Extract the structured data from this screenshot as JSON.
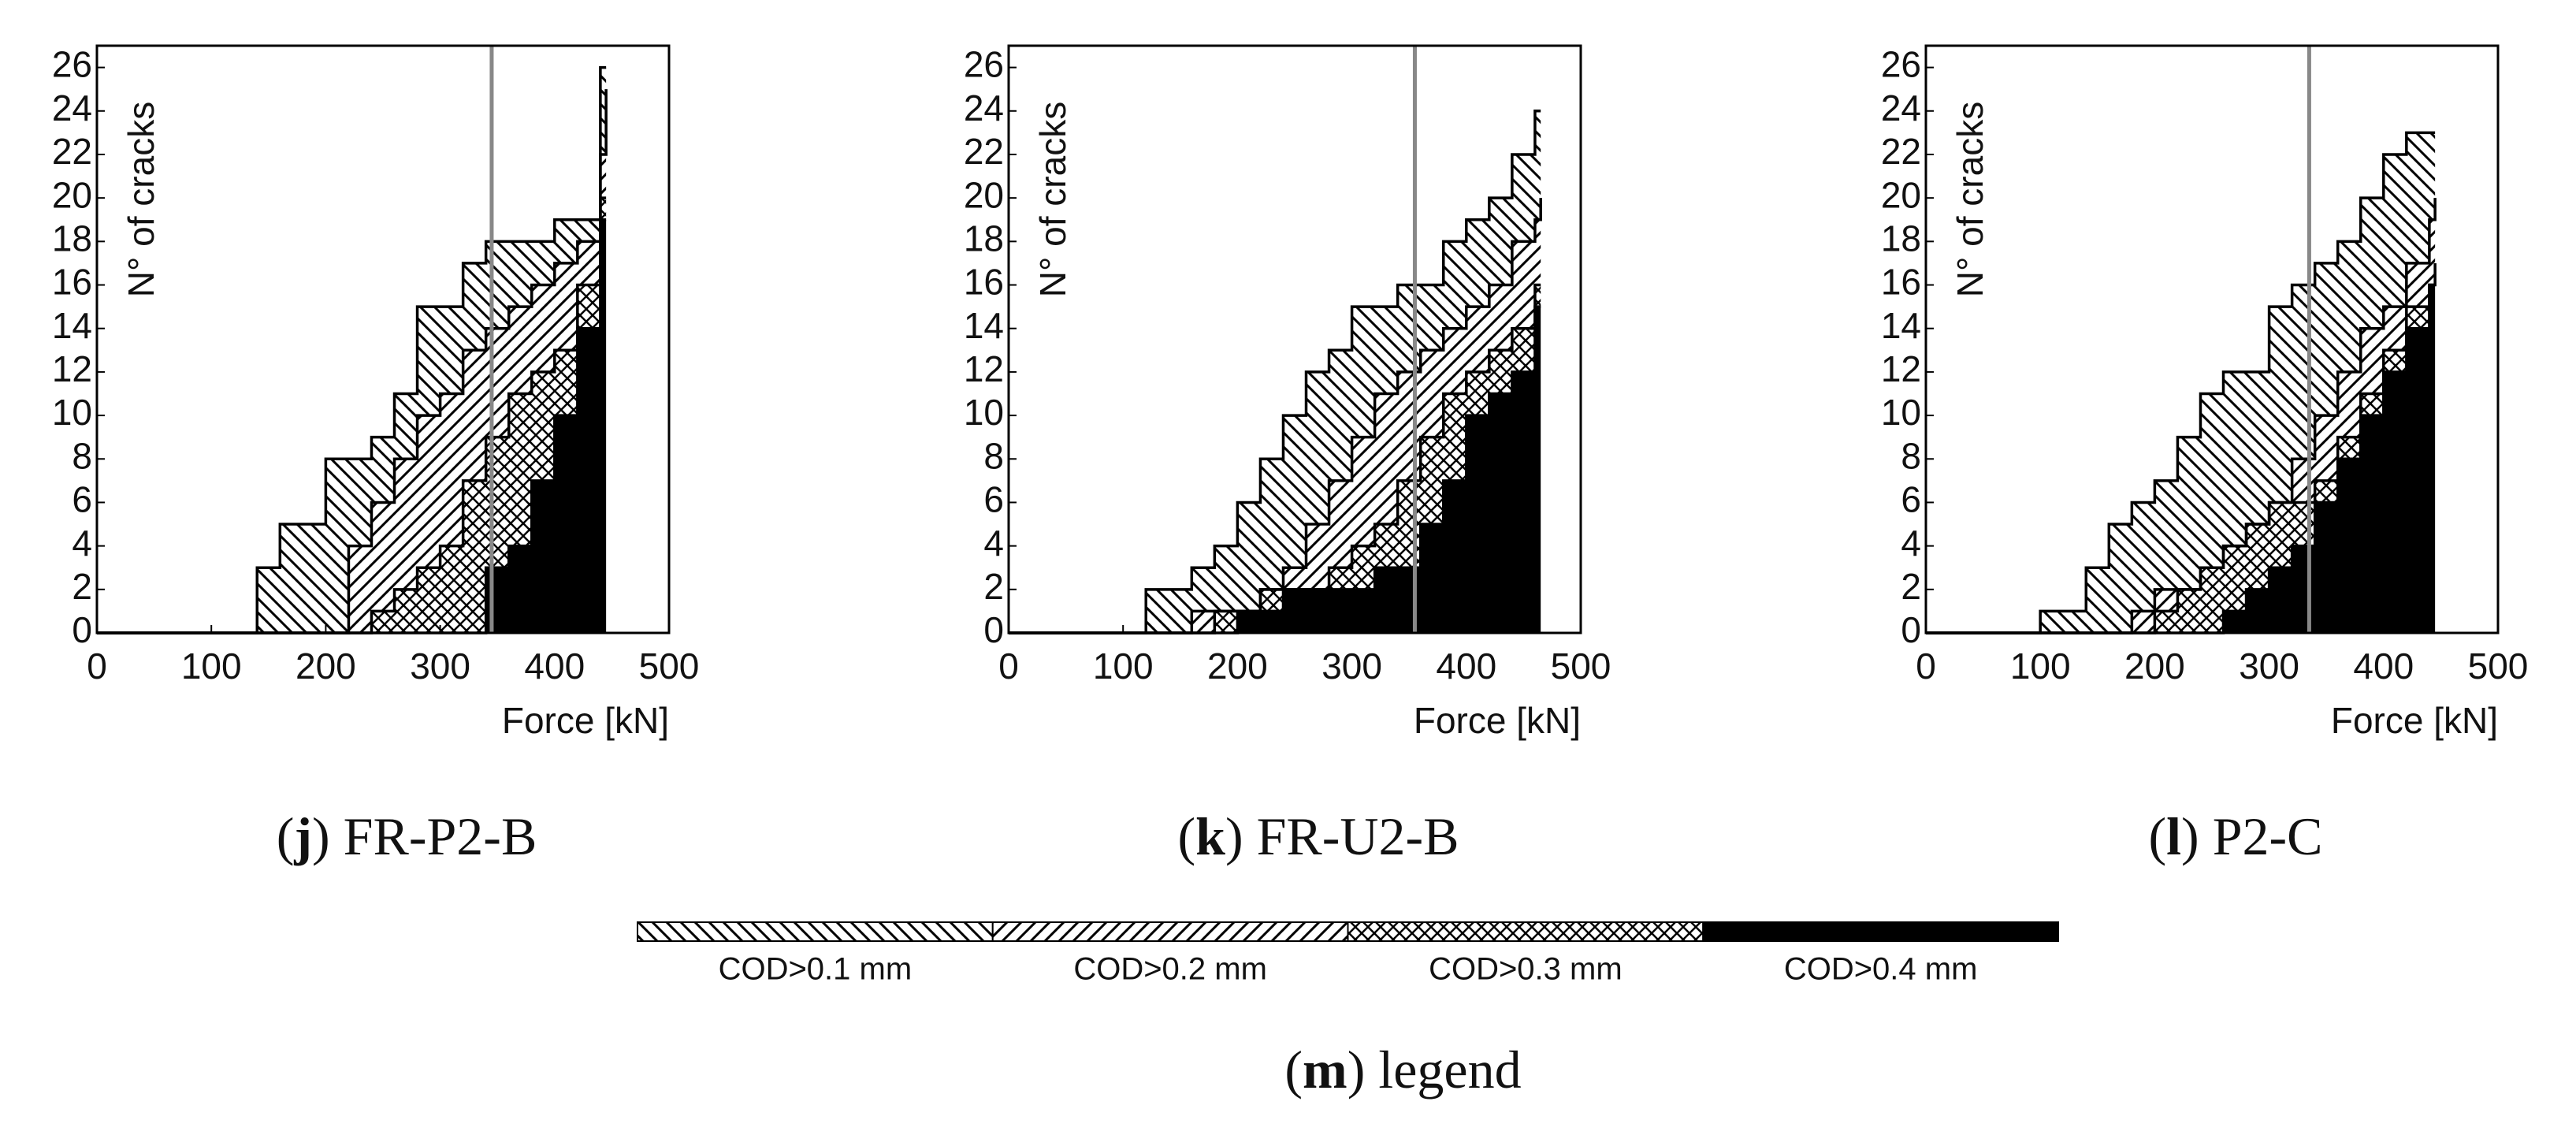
{
  "chart_data": [
    {
      "type": "step-area",
      "x_label": "Force [kN]",
      "y_label": "N° of cracks",
      "caption": [
        "(",
        "j",
        ") FR-P2-B"
      ],
      "xlim": [
        0,
        500
      ],
      "xticks": [
        0,
        100,
        200,
        300,
        400,
        500
      ],
      "ylim": [
        0,
        27
      ],
      "yticks": [
        0,
        2,
        4,
        6,
        8,
        10,
        12,
        14,
        16,
        18,
        20,
        22,
        24,
        26
      ],
      "vline": 345,
      "vline_color": "#888888",
      "x": [
        0,
        120,
        140,
        160,
        180,
        200,
        220,
        240,
        260,
        280,
        300,
        320,
        340,
        360,
        380,
        400,
        420,
        440,
        445
      ],
      "series": [
        {
          "pattern": "backslash",
          "values": [
            0,
            0,
            3,
            5,
            5,
            8,
            8,
            9,
            11,
            15,
            15,
            17,
            18,
            18,
            18,
            19,
            19,
            26,
            26
          ]
        },
        {
          "pattern": "slash",
          "values": [
            0,
            0,
            0,
            0,
            0,
            0,
            4,
            6,
            8,
            10,
            11,
            13,
            14,
            15,
            16,
            17,
            18,
            22,
            25
          ]
        },
        {
          "pattern": "cross",
          "values": [
            0,
            0,
            0,
            0,
            0,
            0,
            0,
            1,
            2,
            3,
            4,
            7,
            9,
            11,
            12,
            13,
            16,
            20,
            20
          ]
        },
        {
          "pattern": "solid",
          "values": [
            0,
            0,
            0,
            0,
            0,
            0,
            0,
            0,
            0,
            0,
            0,
            0,
            3,
            4,
            7,
            10,
            14,
            19,
            19
          ]
        }
      ]
    },
    {
      "type": "step-area",
      "x_label": "Force [kN]",
      "y_label": "N° of cracks",
      "caption": [
        "(",
        "k",
        ") FR-U2-B"
      ],
      "xlim": [
        0,
        500
      ],
      "xticks": [
        0,
        100,
        200,
        300,
        400,
        500
      ],
      "ylim": [
        0,
        27
      ],
      "yticks": [
        0,
        2,
        4,
        6,
        8,
        10,
        12,
        14,
        16,
        18,
        20,
        22,
        24,
        26
      ],
      "vline": 355,
      "vline_color": "#888888",
      "x": [
        0,
        100,
        120,
        140,
        160,
        180,
        200,
        220,
        240,
        260,
        280,
        300,
        320,
        340,
        360,
        380,
        400,
        420,
        440,
        460,
        465
      ],
      "series": [
        {
          "pattern": "backslash",
          "values": [
            0,
            0,
            2,
            2,
            3,
            4,
            6,
            8,
            10,
            12,
            13,
            15,
            15,
            16,
            16,
            18,
            19,
            20,
            22,
            24,
            24
          ]
        },
        {
          "pattern": "slash",
          "values": [
            0,
            0,
            0,
            0,
            1,
            1,
            1,
            2,
            3,
            5,
            7,
            9,
            11,
            12,
            13,
            14,
            15,
            16,
            18,
            19,
            20
          ]
        },
        {
          "pattern": "cross",
          "values": [
            0,
            0,
            0,
            0,
            0,
            1,
            1,
            2,
            2,
            2,
            3,
            4,
            5,
            7,
            9,
            11,
            12,
            13,
            14,
            16,
            16
          ]
        },
        {
          "pattern": "solid",
          "values": [
            0,
            0,
            0,
            0,
            0,
            0,
            1,
            1,
            2,
            2,
            2,
            2,
            3,
            3,
            5,
            7,
            10,
            11,
            12,
            15,
            15
          ]
        }
      ]
    },
    {
      "type": "step-area",
      "x_label": "Force [kN]",
      "y_label": "N° of cracks",
      "caption": [
        "(",
        "l",
        ") P2-C"
      ],
      "xlim": [
        0,
        500
      ],
      "xticks": [
        0,
        100,
        200,
        300,
        400,
        500
      ],
      "ylim": [
        0,
        27
      ],
      "yticks": [
        0,
        2,
        4,
        6,
        8,
        10,
        12,
        14,
        16,
        18,
        20,
        22,
        24,
        26
      ],
      "vline": 335,
      "vline_color": "#888888",
      "x": [
        0,
        80,
        100,
        120,
        140,
        160,
        180,
        200,
        220,
        240,
        260,
        280,
        300,
        320,
        340,
        360,
        380,
        400,
        420,
        440,
        445
      ],
      "series": [
        {
          "pattern": "backslash",
          "values": [
            0,
            0,
            1,
            1,
            3,
            5,
            6,
            7,
            9,
            11,
            12,
            12,
            15,
            16,
            17,
            18,
            20,
            22,
            23,
            23,
            23
          ]
        },
        {
          "pattern": "slash",
          "values": [
            0,
            0,
            0,
            0,
            0,
            0,
            1,
            2,
            2,
            3,
            4,
            5,
            6,
            8,
            10,
            12,
            14,
            15,
            17,
            19,
            20
          ]
        },
        {
          "pattern": "cross",
          "values": [
            0,
            0,
            0,
            0,
            0,
            0,
            0,
            1,
            2,
            3,
            4,
            5,
            6,
            6,
            7,
            9,
            11,
            13,
            15,
            16,
            17
          ]
        },
        {
          "pattern": "solid",
          "values": [
            0,
            0,
            0,
            0,
            0,
            0,
            0,
            0,
            0,
            0,
            1,
            2,
            3,
            4,
            6,
            8,
            10,
            12,
            14,
            16,
            16
          ]
        }
      ]
    }
  ],
  "legend": {
    "entries": [
      {
        "name": "COD>0.1 mm",
        "pattern": "backslash"
      },
      {
        "name": "COD>0.2 mm",
        "pattern": "slash"
      },
      {
        "name": "COD>0.3 mm",
        "pattern": "cross"
      },
      {
        "name": "COD>0.4 mm",
        "pattern": "solid"
      }
    ],
    "caption": [
      "(",
      "m",
      ") legend"
    ]
  }
}
